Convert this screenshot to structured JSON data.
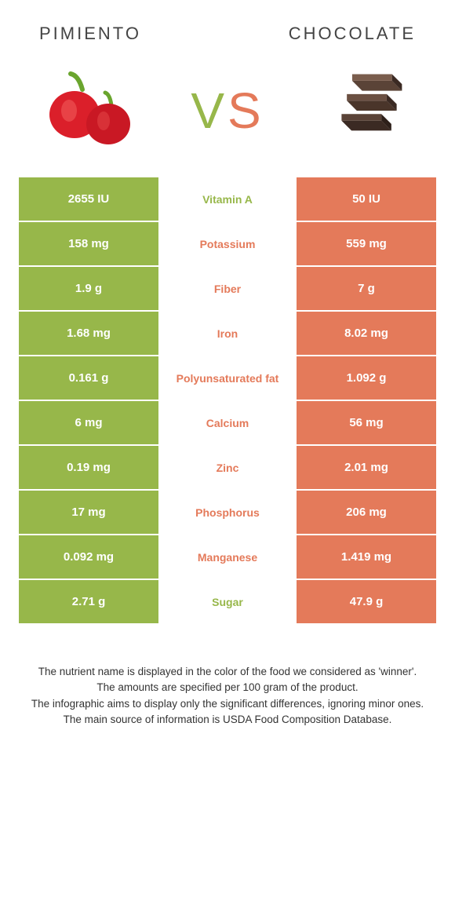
{
  "left_food": "PIMIENTO",
  "right_food": "CHOCOLATE",
  "vs_text": {
    "v": "V",
    "s": "S"
  },
  "colors": {
    "left": "#97b74a",
    "right": "#e47a5a",
    "pepper_red": "#db1f2a",
    "pepper_stem": "#6aa52e",
    "choc_dark": "#3b2a23",
    "choc_mid": "#5a4337",
    "choc_light": "#7a5d4d"
  },
  "rows": [
    {
      "left": "2655 IU",
      "label": "Vitamin A",
      "right": "50 IU",
      "winner": "left"
    },
    {
      "left": "158 mg",
      "label": "Potassium",
      "right": "559 mg",
      "winner": "right"
    },
    {
      "left": "1.9 g",
      "label": "Fiber",
      "right": "7 g",
      "winner": "right"
    },
    {
      "left": "1.68 mg",
      "label": "Iron",
      "right": "8.02 mg",
      "winner": "right"
    },
    {
      "left": "0.161 g",
      "label": "Polyunsaturated fat",
      "right": "1.092 g",
      "winner": "right"
    },
    {
      "left": "6 mg",
      "label": "Calcium",
      "right": "56 mg",
      "winner": "right"
    },
    {
      "left": "0.19 mg",
      "label": "Zinc",
      "right": "2.01 mg",
      "winner": "right"
    },
    {
      "left": "17 mg",
      "label": "Phosphorus",
      "right": "206 mg",
      "winner": "right"
    },
    {
      "left": "0.092 mg",
      "label": "Manganese",
      "right": "1.419 mg",
      "winner": "right"
    },
    {
      "left": "2.71 g",
      "label": "Sugar",
      "right": "47.9 g",
      "winner": "left"
    }
  ],
  "footnotes": [
    "The nutrient name is displayed in the color of the food we considered as 'winner'.",
    "The amounts are specified per 100 gram of the product.",
    "The infographic aims to display only the significant differences, ignoring minor ones.",
    "The main source of information is USDA Food Composition Database."
  ]
}
